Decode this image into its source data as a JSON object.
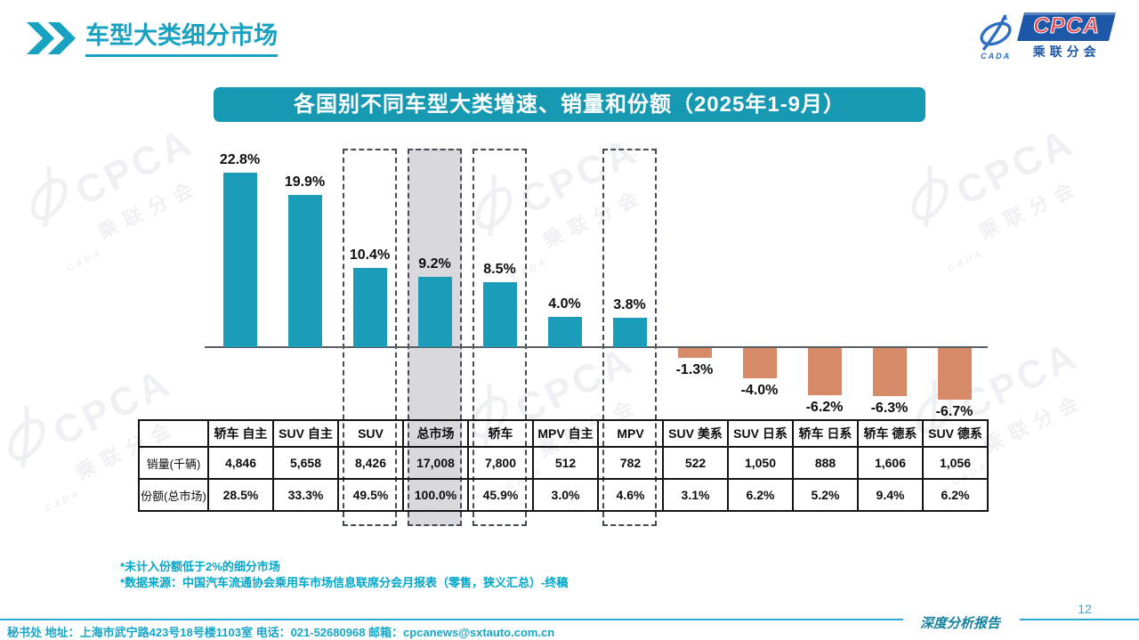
{
  "header": {
    "title": "车型大类细分市场",
    "logo": {
      "cpca": "CPCA",
      "sub": "乘联分会",
      "cada": "CADA"
    }
  },
  "banner": {
    "title": "各国别不同车型大类增速、销量和份额（2025年1-9月）"
  },
  "chart_data": {
    "type": "bar",
    "title": "各国别不同车型大类增速、销量和份额（2025年1-9月）",
    "categories": [
      "轿车 自主",
      "SUV 自主",
      "SUV",
      "总市场",
      "轿车",
      "MPV 自主",
      "MPV",
      "SUV 美系",
      "SUV 日系",
      "轿车 日系",
      "轿车 德系",
      "SUV 德系"
    ],
    "series": [
      {
        "name": "增速",
        "unit": "%",
        "values": [
          22.8,
          19.9,
          10.4,
          9.2,
          8.5,
          4.0,
          3.8,
          -1.3,
          -4.0,
          -6.2,
          -6.3,
          -6.7
        ]
      },
      {
        "name": "销量(千辆)",
        "values": [
          "4,846",
          "5,658",
          "8,426",
          "17,008",
          "7,800",
          "512",
          "782",
          "522",
          "1,050",
          "888",
          "1,606",
          "1,056"
        ]
      },
      {
        "name": "份额(总市场)",
        "values": [
          "28.5%",
          "33.3%",
          "49.5%",
          "100.0%",
          "45.9%",
          "3.0%",
          "4.6%",
          "3.1%",
          "6.2%",
          "5.2%",
          "9.4%",
          "6.2%"
        ]
      }
    ],
    "labels": [
      "22.8%",
      "19.9%",
      "10.4%",
      "9.2%",
      "8.5%",
      "4.0%",
      "3.8%",
      "-1.3%",
      "-4.0%",
      "-6.2%",
      "-6.3%",
      "-6.7%"
    ],
    "highlight_boxes": [
      {
        "index": 2,
        "filled": false
      },
      {
        "index": 3,
        "filled": true
      },
      {
        "index": 4,
        "filled": false
      },
      {
        "index": 6,
        "filled": false
      }
    ],
    "ylim": [
      -8,
      25
    ],
    "grid": false,
    "legend": "none",
    "bar_color_positive": "#1b9db9",
    "bar_color_negative": "#d78a68",
    "highlight_fill": "#d8d8dd"
  },
  "table": {
    "row_labels": [
      "销量(千辆)",
      "份额(总市场)"
    ]
  },
  "footnotes": [
    "*未计入份额低于2%的细分市场",
    "*数据来源：中国汽车流通协会乘用车市场信息联席分会月报表（零售，狭义汇总）-终稿"
  ],
  "footer": {
    "contact": "秘书处  地址：上海市武宁路423号18号楼1103室 电话：021-52680968  邮箱：cpcanews@sxtauto.com.cn",
    "report_name": "深度分析报告",
    "page_number": "12"
  },
  "watermark": {
    "text_main": "CPCA",
    "text_sub": "乘联分会",
    "text_cada": "CADA"
  }
}
